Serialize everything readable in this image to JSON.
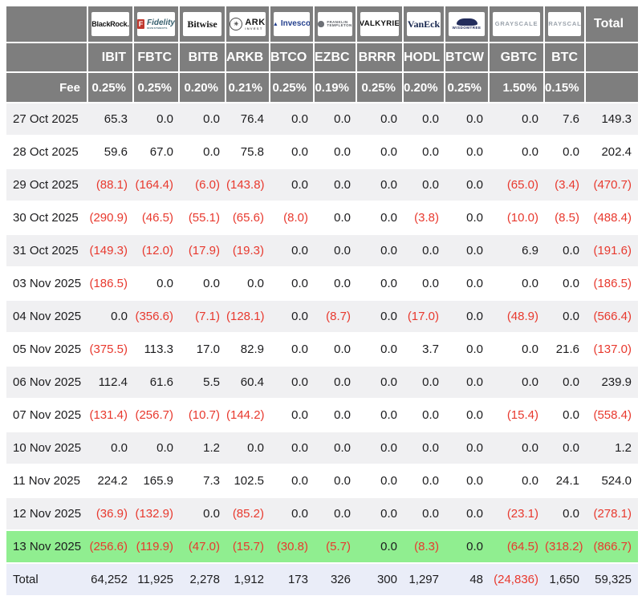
{
  "chart_data": {
    "type": "table",
    "total_header": "Total",
    "fee_label": "Fee",
    "columns": [
      {
        "ticker": "IBIT",
        "fee": "0.25%",
        "provider": "BlackRock",
        "logo": {
          "id": "blackrock",
          "main": "BlackRock."
        }
      },
      {
        "ticker": "FBTC",
        "fee": "0.25%",
        "provider": "Fidelity",
        "logo": {
          "id": "fidelity",
          "icon": "F",
          "main": "Fidelity",
          "sub": "INVESTMENTS"
        }
      },
      {
        "ticker": "BITB",
        "fee": "0.20%",
        "provider": "Bitwise",
        "logo": {
          "id": "bitwise",
          "main": "Bitwise"
        }
      },
      {
        "ticker": "ARKB",
        "fee": "0.21%",
        "provider": "ARK Invest",
        "logo": {
          "id": "ark",
          "icon": "✳",
          "main": "ARK",
          "sub": "INVEST"
        }
      },
      {
        "ticker": "BTCO",
        "fee": "0.25%",
        "provider": "Invesco",
        "logo": {
          "id": "invesco",
          "icon": "▲",
          "main": "Invesco"
        }
      },
      {
        "ticker": "EZBC",
        "fee": "0.19%",
        "provider": "Franklin Templeton",
        "logo": {
          "id": "franklin",
          "shape": true,
          "main": "FRANKLIN",
          "sub": "TEMPLETON"
        }
      },
      {
        "ticker": "BRRR",
        "fee": "0.25%",
        "provider": "Valkyrie",
        "logo": {
          "id": "valkyrie",
          "main": "VALKYRIE"
        }
      },
      {
        "ticker": "HODL",
        "fee": "0.20%",
        "provider": "VanEck",
        "logo": {
          "id": "vaneck",
          "main": "VanEck"
        }
      },
      {
        "ticker": "BTCW",
        "fee": "0.25%",
        "provider": "WisdomTree",
        "logo": {
          "id": "wisdomtree",
          "shape": true,
          "main": "WISDOMTREE"
        }
      },
      {
        "ticker": "GBTC",
        "fee": "1.50%",
        "provider": "Grayscale",
        "logo": {
          "id": "grayscale",
          "main": "GRAYSCALE"
        }
      },
      {
        "ticker": "BTC",
        "fee": "0.15%",
        "provider": "Grayscale",
        "logo": {
          "id": "grayscale",
          "main": "GRAYSCALE"
        }
      }
    ],
    "rows": [
      {
        "date": "27 Oct 2025",
        "values": [
          "65.3",
          "0.0",
          "0.0",
          "76.4",
          "0.0",
          "0.0",
          "0.0",
          "0.0",
          "0.0",
          "0.0",
          "7.6",
          "149.3"
        ]
      },
      {
        "date": "28 Oct 2025",
        "values": [
          "59.6",
          "67.0",
          "0.0",
          "75.8",
          "0.0",
          "0.0",
          "0.0",
          "0.0",
          "0.0",
          "0.0",
          "0.0",
          "202.4"
        ]
      },
      {
        "date": "29 Oct 2025",
        "values": [
          "(88.1)",
          "(164.4)",
          "(6.0)",
          "(143.8)",
          "0.0",
          "0.0",
          "0.0",
          "0.0",
          "0.0",
          "(65.0)",
          "(3.4)",
          "(470.7)"
        ]
      },
      {
        "date": "30 Oct 2025",
        "values": [
          "(290.9)",
          "(46.5)",
          "(55.1)",
          "(65.6)",
          "(8.0)",
          "0.0",
          "0.0",
          "(3.8)",
          "0.0",
          "(10.0)",
          "(8.5)",
          "(488.4)"
        ]
      },
      {
        "date": "31 Oct 2025",
        "values": [
          "(149.3)",
          "(12.0)",
          "(17.9)",
          "(19.3)",
          "0.0",
          "0.0",
          "0.0",
          "0.0",
          "0.0",
          "6.9",
          "0.0",
          "(191.6)"
        ]
      },
      {
        "date": "03 Nov 2025",
        "values": [
          "(186.5)",
          "0.0",
          "0.0",
          "0.0",
          "0.0",
          "0.0",
          "0.0",
          "0.0",
          "0.0",
          "0.0",
          "0.0",
          "(186.5)"
        ]
      },
      {
        "date": "04 Nov 2025",
        "values": [
          "0.0",
          "(356.6)",
          "(7.1)",
          "(128.1)",
          "0.0",
          "(8.7)",
          "0.0",
          "(17.0)",
          "0.0",
          "(48.9)",
          "0.0",
          "(566.4)"
        ]
      },
      {
        "date": "05 Nov 2025",
        "values": [
          "(375.5)",
          "113.3",
          "17.0",
          "82.9",
          "0.0",
          "0.0",
          "0.0",
          "3.7",
          "0.0",
          "0.0",
          "21.6",
          "(137.0)"
        ]
      },
      {
        "date": "06 Nov 2025",
        "values": [
          "112.4",
          "61.6",
          "5.5",
          "60.4",
          "0.0",
          "0.0",
          "0.0",
          "0.0",
          "0.0",
          "0.0",
          "0.0",
          "239.9"
        ]
      },
      {
        "date": "07 Nov 2025",
        "values": [
          "(131.4)",
          "(256.7)",
          "(10.7)",
          "(144.2)",
          "0.0",
          "0.0",
          "0.0",
          "0.0",
          "0.0",
          "(15.4)",
          "0.0",
          "(558.4)"
        ]
      },
      {
        "date": "10 Nov 2025",
        "values": [
          "0.0",
          "0.0",
          "1.2",
          "0.0",
          "0.0",
          "0.0",
          "0.0",
          "0.0",
          "0.0",
          "0.0",
          "0.0",
          "1.2"
        ]
      },
      {
        "date": "11 Nov 2025",
        "values": [
          "224.2",
          "165.9",
          "7.3",
          "102.5",
          "0.0",
          "0.0",
          "0.0",
          "0.0",
          "0.0",
          "0.0",
          "24.1",
          "524.0"
        ]
      },
      {
        "date": "12 Nov 2025",
        "values": [
          "(36.9)",
          "(132.9)",
          "0.0",
          "(85.2)",
          "0.0",
          "0.0",
          "0.0",
          "0.0",
          "0.0",
          "(23.1)",
          "0.0",
          "(278.1)"
        ]
      },
      {
        "date": "13 Nov 2025",
        "highlight": true,
        "values": [
          "(256.6)",
          "(119.9)",
          "(47.0)",
          "(15.7)",
          "(30.8)",
          "(5.7)",
          "0.0",
          "(8.3)",
          "0.0",
          "(64.5)",
          "(318.2)",
          "(866.7)"
        ]
      }
    ],
    "total_row": {
      "label": "Total",
      "values": [
        "64,252",
        "11,925",
        "2,278",
        "1,912",
        "173",
        "326",
        "300",
        "1,297",
        "48",
        "(24,836)",
        "1,650",
        "59,325"
      ]
    },
    "colors": {
      "header_bg": "#7e7e7e",
      "stripe_bg": "#f0f0f2",
      "highlight_bg": "#90ee90",
      "total_bg": "#eaedf8",
      "negative_text": "#e8392e"
    }
  }
}
